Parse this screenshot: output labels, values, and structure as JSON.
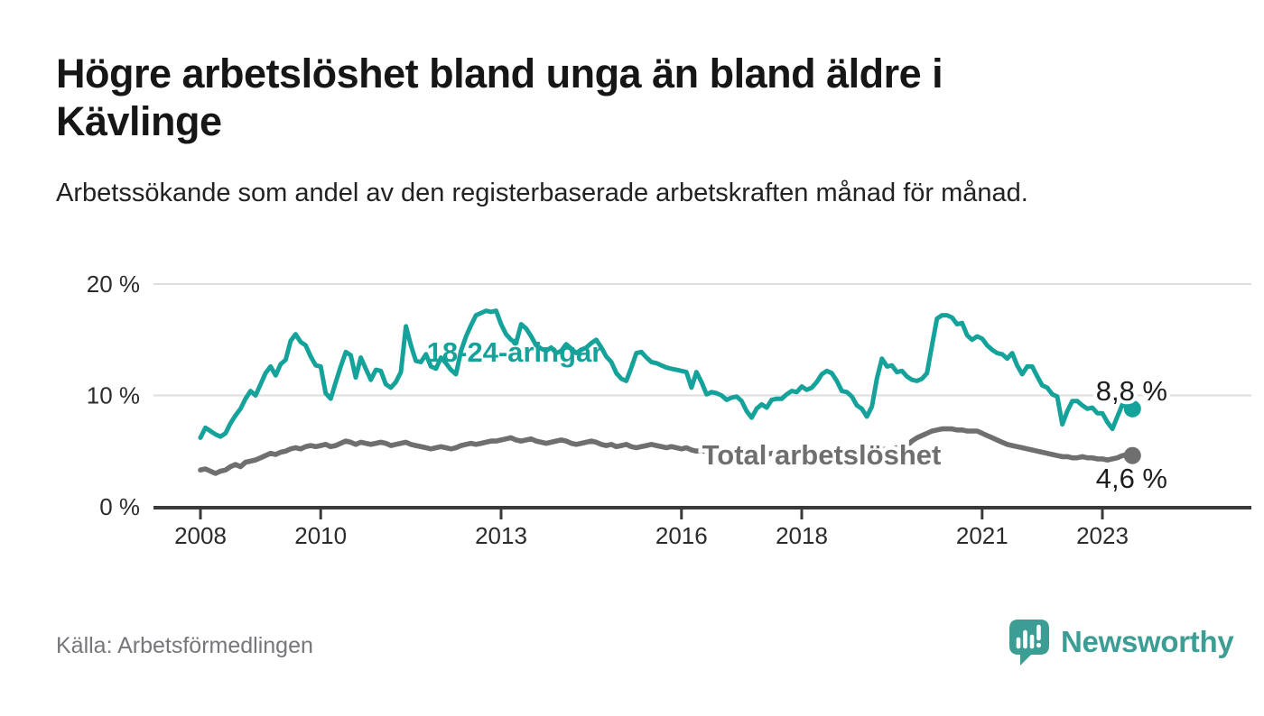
{
  "header": {
    "title": "Högre arbetslöshet bland unga än bland äldre i Kävlinge",
    "subtitle": "Arbetssökande som andel av den registerbaserade arbetskraften månad för månad."
  },
  "footer": {
    "source": "Källa: Arbetsförmedlingen",
    "brand": "Newsworthy"
  },
  "chart_data": {
    "type": "line",
    "title": "Högre arbetslöshet bland unga än bland äldre i Kävlinge",
    "subtitle": "Arbetssökande som andel av den registerbaserade arbetskraften månad för månad.",
    "unit": "%",
    "x_start": "2008-01",
    "x_end": "2023-07",
    "x_step": "month",
    "ylim": [
      0,
      22
    ],
    "grid": "horizontal",
    "legend_position": "inline-labels",
    "yticks": [
      {
        "value": 0,
        "label": "0 %"
      },
      {
        "value": 10,
        "label": "10 %"
      },
      {
        "value": 20,
        "label": "20 %"
      }
    ],
    "xticks": [
      {
        "year": 2008,
        "label": "2008"
      },
      {
        "year": 2010,
        "label": "2010"
      },
      {
        "year": 2013,
        "label": "2013"
      },
      {
        "year": 2016,
        "label": "2016"
      },
      {
        "year": 2018,
        "label": "2018"
      },
      {
        "year": 2021,
        "label": "2021"
      },
      {
        "year": 2023,
        "label": "2023"
      }
    ],
    "colors": {
      "grid": "#dddddd",
      "axis": "#3a3a3a",
      "tick_text": "#2b2b2b",
      "value_label": "#1d1d1d",
      "youth_line": "#15a29a",
      "total_line": "#6f6f6f"
    },
    "series": [
      {
        "name": "18-24-åringar",
        "color": "#15a29a",
        "end_label": "8,8 %",
        "end_value": 8.8,
        "values": [
          6.2,
          7.1,
          6.8,
          6.5,
          6.3,
          6.6,
          7.5,
          8.2,
          8.8,
          9.7,
          10.4,
          10.0,
          11.0,
          12.0,
          12.6,
          11.8,
          12.8,
          13.2,
          14.9,
          15.5,
          14.8,
          14.5,
          13.5,
          12.7,
          12.6,
          10.2,
          9.7,
          11.2,
          12.6,
          13.9,
          13.6,
          11.6,
          13.4,
          12.4,
          11.4,
          12.3,
          12.2,
          11.0,
          10.7,
          11.2,
          12.1,
          16.2,
          14.5,
          13.1,
          13.0,
          13.7,
          12.6,
          12.4,
          13.4,
          12.9,
          12.3,
          11.9,
          14.0,
          15.3,
          16.3,
          17.2,
          17.4,
          17.6,
          17.5,
          17.6,
          16.4,
          15.5,
          15.0,
          14.7,
          16.4,
          16.0,
          15.3,
          14.5,
          14.2,
          14.0,
          14.3,
          13.8,
          14.0,
          14.6,
          14.2,
          13.8,
          14.1,
          14.3,
          14.7,
          15.0,
          14.3,
          13.5,
          13.0,
          12.0,
          11.5,
          11.3,
          12.5,
          13.8,
          13.9,
          13.4,
          13.0,
          12.9,
          12.7,
          12.5,
          12.4,
          12.3,
          12.2,
          12.1,
          10.7,
          12.1,
          11.2,
          10.1,
          10.3,
          10.2,
          10.0,
          9.6,
          9.8,
          9.9,
          9.5,
          8.6,
          8.0,
          8.8,
          9.2,
          8.9,
          9.6,
          9.7,
          9.7,
          10.1,
          10.4,
          10.3,
          10.8,
          10.5,
          10.7,
          11.2,
          11.9,
          12.2,
          12.0,
          11.3,
          10.4,
          10.3,
          9.9,
          9.1,
          8.8,
          8.1,
          9.0,
          11.5,
          13.3,
          12.6,
          12.7,
          12.1,
          12.2,
          11.7,
          11.4,
          11.3,
          11.5,
          12.0,
          14.5,
          16.9,
          17.2,
          17.2,
          17.0,
          16.4,
          16.5,
          15.4,
          15.0,
          15.3,
          15.1,
          14.5,
          14.1,
          13.8,
          13.7,
          13.3,
          13.8,
          12.7,
          11.9,
          12.6,
          12.6,
          11.7,
          10.9,
          10.7,
          10.1,
          9.9,
          7.4,
          8.6,
          9.5,
          9.5,
          9.1,
          8.8,
          8.9,
          8.4,
          8.4,
          7.6,
          7.0,
          8.1,
          9.2,
          8.9,
          8.8
        ]
      },
      {
        "name": "Total arbetslöshet",
        "color": "#6f6f6f",
        "end_label": "4,6 %",
        "end_value": 4.6,
        "values": [
          3.3,
          3.4,
          3.2,
          3.0,
          3.2,
          3.3,
          3.6,
          3.8,
          3.6,
          4.0,
          4.1,
          4.2,
          4.4,
          4.6,
          4.8,
          4.7,
          4.9,
          5.0,
          5.2,
          5.3,
          5.2,
          5.4,
          5.5,
          5.4,
          5.5,
          5.6,
          5.4,
          5.5,
          5.7,
          5.9,
          5.8,
          5.6,
          5.8,
          5.7,
          5.6,
          5.7,
          5.8,
          5.7,
          5.5,
          5.6,
          5.7,
          5.8,
          5.6,
          5.5,
          5.4,
          5.3,
          5.2,
          5.3,
          5.4,
          5.3,
          5.2,
          5.3,
          5.5,
          5.6,
          5.7,
          5.6,
          5.7,
          5.8,
          5.9,
          5.9,
          6.0,
          6.1,
          6.2,
          6.0,
          5.9,
          6.0,
          6.1,
          5.9,
          5.8,
          5.7,
          5.8,
          5.9,
          6.0,
          5.9,
          5.7,
          5.6,
          5.7,
          5.8,
          5.9,
          5.8,
          5.6,
          5.5,
          5.6,
          5.4,
          5.5,
          5.6,
          5.4,
          5.3,
          5.4,
          5.5,
          5.6,
          5.5,
          5.4,
          5.3,
          5.4,
          5.3,
          5.2,
          5.3,
          5.1,
          5.0,
          5.1,
          4.9,
          5.0,
          5.1,
          5.0,
          4.9,
          4.8,
          4.9,
          4.8,
          4.7,
          4.8,
          4.9,
          4.8,
          4.7,
          4.8,
          4.9,
          5.0,
          4.9,
          4.8,
          4.9,
          4.8,
          4.7,
          4.6,
          4.7,
          4.8,
          4.9,
          4.8,
          4.7,
          4.6,
          4.7,
          4.8,
          4.7,
          4.8,
          4.9,
          5.0,
          5.1,
          5.2,
          5.1,
          5.2,
          5.3,
          5.4,
          5.5,
          5.9,
          6.2,
          6.4,
          6.6,
          6.8,
          6.9,
          7.0,
          7.0,
          7.0,
          6.9,
          6.9,
          6.8,
          6.8,
          6.8,
          6.6,
          6.4,
          6.2,
          6.0,
          5.8,
          5.6,
          5.5,
          5.4,
          5.3,
          5.2,
          5.1,
          5.0,
          4.9,
          4.8,
          4.7,
          4.6,
          4.5,
          4.5,
          4.4,
          4.4,
          4.5,
          4.4,
          4.4,
          4.3,
          4.3,
          4.2,
          4.3,
          4.4,
          4.6,
          4.7,
          4.6
        ]
      }
    ]
  }
}
